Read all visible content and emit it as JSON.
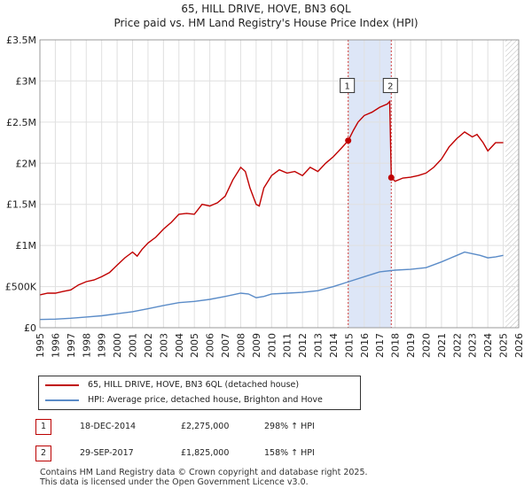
{
  "title_line1": "65, HILL DRIVE, HOVE, BN3 6QL",
  "title_line2": "Price paid vs. HM Land Registry's House Price Index (HPI)",
  "chart_data": {
    "type": "line",
    "xlim": [
      1995,
      2026
    ],
    "ylim": [
      0,
      3500000
    ],
    "x_ticks": [
      "1995",
      "1996",
      "1997",
      "1998",
      "1999",
      "2000",
      "2001",
      "2002",
      "2003",
      "2004",
      "2005",
      "2006",
      "2007",
      "2008",
      "2009",
      "2010",
      "2011",
      "2012",
      "2013",
      "2014",
      "2015",
      "2016",
      "2017",
      "2018",
      "2019",
      "2020",
      "2021",
      "2022",
      "2023",
      "2024",
      "2025",
      "2026"
    ],
    "y_ticks": [
      {
        "value": 0,
        "label": "£0"
      },
      {
        "value": 500000,
        "label": "£500K"
      },
      {
        "value": 1000000,
        "label": "£1M"
      },
      {
        "value": 1500000,
        "label": "£1.5M"
      },
      {
        "value": 2000000,
        "label": "£2M"
      },
      {
        "value": 2500000,
        "label": "£2.5M"
      },
      {
        "value": 3000000,
        "label": "£3M"
      },
      {
        "value": 3500000,
        "label": "£3.5M"
      }
    ],
    "grid": true,
    "shaded_region": {
      "x_start": 2014.96,
      "x_end": 2017.75,
      "color": "#dde6f7"
    },
    "future_hatch_start": 2025.15,
    "series": [
      {
        "name": "65, HILL DRIVE, HOVE, BN3 6QL (detached house)",
        "color": "#c00000",
        "points": [
          [
            1995.0,
            400000
          ],
          [
            1995.5,
            420000
          ],
          [
            1996.0,
            420000
          ],
          [
            1996.5,
            440000
          ],
          [
            1997.0,
            460000
          ],
          [
            1997.5,
            520000
          ],
          [
            1998.0,
            560000
          ],
          [
            1998.5,
            580000
          ],
          [
            1999.0,
            620000
          ],
          [
            1999.5,
            670000
          ],
          [
            2000.0,
            760000
          ],
          [
            2000.5,
            850000
          ],
          [
            2001.0,
            920000
          ],
          [
            2001.3,
            870000
          ],
          [
            2001.6,
            950000
          ],
          [
            2002.0,
            1030000
          ],
          [
            2002.5,
            1100000
          ],
          [
            2003.0,
            1200000
          ],
          [
            2003.5,
            1280000
          ],
          [
            2004.0,
            1380000
          ],
          [
            2004.5,
            1390000
          ],
          [
            2005.0,
            1380000
          ],
          [
            2005.5,
            1500000
          ],
          [
            2006.0,
            1480000
          ],
          [
            2006.5,
            1520000
          ],
          [
            2007.0,
            1600000
          ],
          [
            2007.5,
            1800000
          ],
          [
            2008.0,
            1950000
          ],
          [
            2008.3,
            1900000
          ],
          [
            2008.6,
            1700000
          ],
          [
            2009.0,
            1500000
          ],
          [
            2009.2,
            1480000
          ],
          [
            2009.5,
            1700000
          ],
          [
            2010.0,
            1850000
          ],
          [
            2010.5,
            1920000
          ],
          [
            2011.0,
            1880000
          ],
          [
            2011.5,
            1900000
          ],
          [
            2012.0,
            1850000
          ],
          [
            2012.5,
            1950000
          ],
          [
            2013.0,
            1900000
          ],
          [
            2013.5,
            2000000
          ],
          [
            2014.0,
            2080000
          ],
          [
            2014.5,
            2180000
          ],
          [
            2014.96,
            2275000
          ],
          [
            2015.3,
            2400000
          ],
          [
            2015.6,
            2500000
          ],
          [
            2016.0,
            2580000
          ],
          [
            2016.5,
            2620000
          ],
          [
            2017.0,
            2680000
          ],
          [
            2017.5,
            2720000
          ],
          [
            2017.65,
            2750000
          ],
          [
            2017.75,
            1825000
          ],
          [
            2018.0,
            1780000
          ],
          [
            2018.5,
            1820000
          ],
          [
            2019.0,
            1830000
          ],
          [
            2019.5,
            1850000
          ],
          [
            2020.0,
            1880000
          ],
          [
            2020.5,
            1950000
          ],
          [
            2021.0,
            2050000
          ],
          [
            2021.5,
            2200000
          ],
          [
            2022.0,
            2300000
          ],
          [
            2022.5,
            2380000
          ],
          [
            2023.0,
            2320000
          ],
          [
            2023.3,
            2350000
          ],
          [
            2023.7,
            2250000
          ],
          [
            2024.0,
            2150000
          ],
          [
            2024.5,
            2250000
          ],
          [
            2025.0,
            2250000
          ]
        ]
      },
      {
        "name": "HPI: Average price, detached house, Brighton and Hove",
        "color": "#5b8cc8",
        "points": [
          [
            1995.0,
            100000
          ],
          [
            1996.0,
            105000
          ],
          [
            1997.0,
            115000
          ],
          [
            1998.0,
            130000
          ],
          [
            1999.0,
            145000
          ],
          [
            2000.0,
            170000
          ],
          [
            2001.0,
            195000
          ],
          [
            2002.0,
            230000
          ],
          [
            2003.0,
            270000
          ],
          [
            2004.0,
            305000
          ],
          [
            2005.0,
            320000
          ],
          [
            2006.0,
            345000
          ],
          [
            2007.0,
            380000
          ],
          [
            2008.0,
            420000
          ],
          [
            2008.5,
            410000
          ],
          [
            2009.0,
            365000
          ],
          [
            2009.5,
            380000
          ],
          [
            2010.0,
            410000
          ],
          [
            2011.0,
            420000
          ],
          [
            2012.0,
            430000
          ],
          [
            2013.0,
            450000
          ],
          [
            2014.0,
            500000
          ],
          [
            2015.0,
            560000
          ],
          [
            2016.0,
            620000
          ],
          [
            2017.0,
            680000
          ],
          [
            2018.0,
            700000
          ],
          [
            2019.0,
            710000
          ],
          [
            2020.0,
            730000
          ],
          [
            2021.0,
            800000
          ],
          [
            2022.0,
            880000
          ],
          [
            2022.5,
            920000
          ],
          [
            2023.0,
            900000
          ],
          [
            2023.5,
            880000
          ],
          [
            2024.0,
            850000
          ],
          [
            2024.5,
            860000
          ],
          [
            2025.0,
            880000
          ]
        ]
      }
    ],
    "markers": [
      {
        "label": "1",
        "x": 2014.96,
        "y": 2275000,
        "box_y": 2945000
      },
      {
        "label": "2",
        "x": 2017.75,
        "y": 1825000,
        "box_y": 2945000
      }
    ]
  },
  "legend": {
    "items": [
      {
        "label": "65, HILL DRIVE, HOVE, BN3 6QL (detached house)",
        "color": "#c00000"
      },
      {
        "label": "HPI: Average price, detached house, Brighton and Hove",
        "color": "#5b8cc8"
      }
    ]
  },
  "transactions": [
    {
      "num": "1",
      "date": "18-DEC-2014",
      "price": "£2,275,000",
      "hpi": "298% ↑ HPI"
    },
    {
      "num": "2",
      "date": "29-SEP-2017",
      "price": "£1,825,000",
      "hpi": "158% ↑ HPI"
    }
  ],
  "footer": {
    "line1": "Contains HM Land Registry data © Crown copyright and database right 2025.",
    "line2": "This data is licensed under the Open Government Licence v3.0."
  }
}
